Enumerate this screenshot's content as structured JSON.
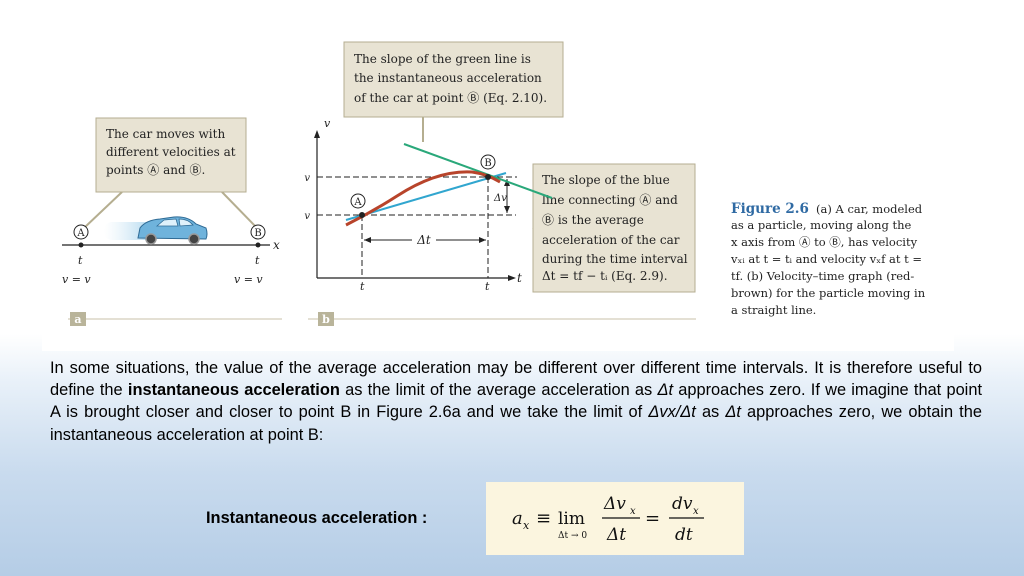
{
  "figure": {
    "callout_a": [
      "The car moves with",
      "different velocities at",
      "points Ⓐ and Ⓑ."
    ],
    "callout_top": [
      "The slope of the green line is",
      "the instantaneous acceleration",
      "of the car at point Ⓑ (Eq. 2.10)."
    ],
    "callout_right": [
      "The slope of the blue",
      "line connecting Ⓐ and",
      "Ⓑ is the average",
      "acceleration of the car",
      "during the time interval",
      "Δt = tf − tᵢ (Eq. 2.9)."
    ],
    "point_a_label": "A",
    "point_b_label": "B",
    "x_axis_symbol": "x",
    "t_axis_symbol": "t",
    "vx_axis_symbol": "v",
    "ti_label": "t",
    "tf_label": "t",
    "delta_t_label": "Δt",
    "delta_vx_label": "Δv",
    "vxf_label": "v",
    "vxi_label": "v",
    "v_eq_left": "v = v",
    "v_eq_right": "v = v",
    "panel_a_tag": "a",
    "panel_b_tag": "b",
    "caption_title": "Figure 2.6",
    "caption_lines": [
      "(a) A car, modeled",
      "as a particle, moving along the",
      "x axis from Ⓐ to Ⓑ, has velocity",
      "vₓᵢ at t = tᵢ and velocity vₓf at t =",
      "tf. (b) Velocity–time graph (red-",
      "brown) for the particle moving in",
      "a straight line."
    ],
    "colors": {
      "callout_bg": "#e8e3d3",
      "callout_border": "#b5ae90",
      "curve_red_brown": "#b8442b",
      "green_tangent": "#2aa87a",
      "blue_secant": "#31a6cf",
      "tab_tag": "#b9b49a",
      "caption_title": "#2f6aa3"
    }
  },
  "text": {
    "p1": "In some situations, the value of the average acceleration may be different over different time intervals. It is therefore useful to define the",
    "bold": "instantaneous acceleration",
    "p2": "as the limit of the average acceleration as",
    "dt": "Δt",
    "p3": "approaches zero. If we imagine that point A is brought closer and closer to point B in Figure 2.6a and we take the limit of",
    "ratio": "Δvx/Δt",
    "p4": "as",
    "dt2": "Δt",
    "p5": "approaches zero, we obtain the instantaneous acceleration at point B:"
  },
  "formula": {
    "label": "Instantaneous acceleration :",
    "lhs": "a",
    "lhs_sub": "x",
    "equiv": "≡",
    "lim": "lim",
    "lim_sub": "Δt → 0",
    "num": "Δv",
    "num_sub": "x",
    "den": "Δt",
    "eq": "=",
    "dnum": "dv",
    "dnum_sub": "x",
    "dden": "dt"
  }
}
